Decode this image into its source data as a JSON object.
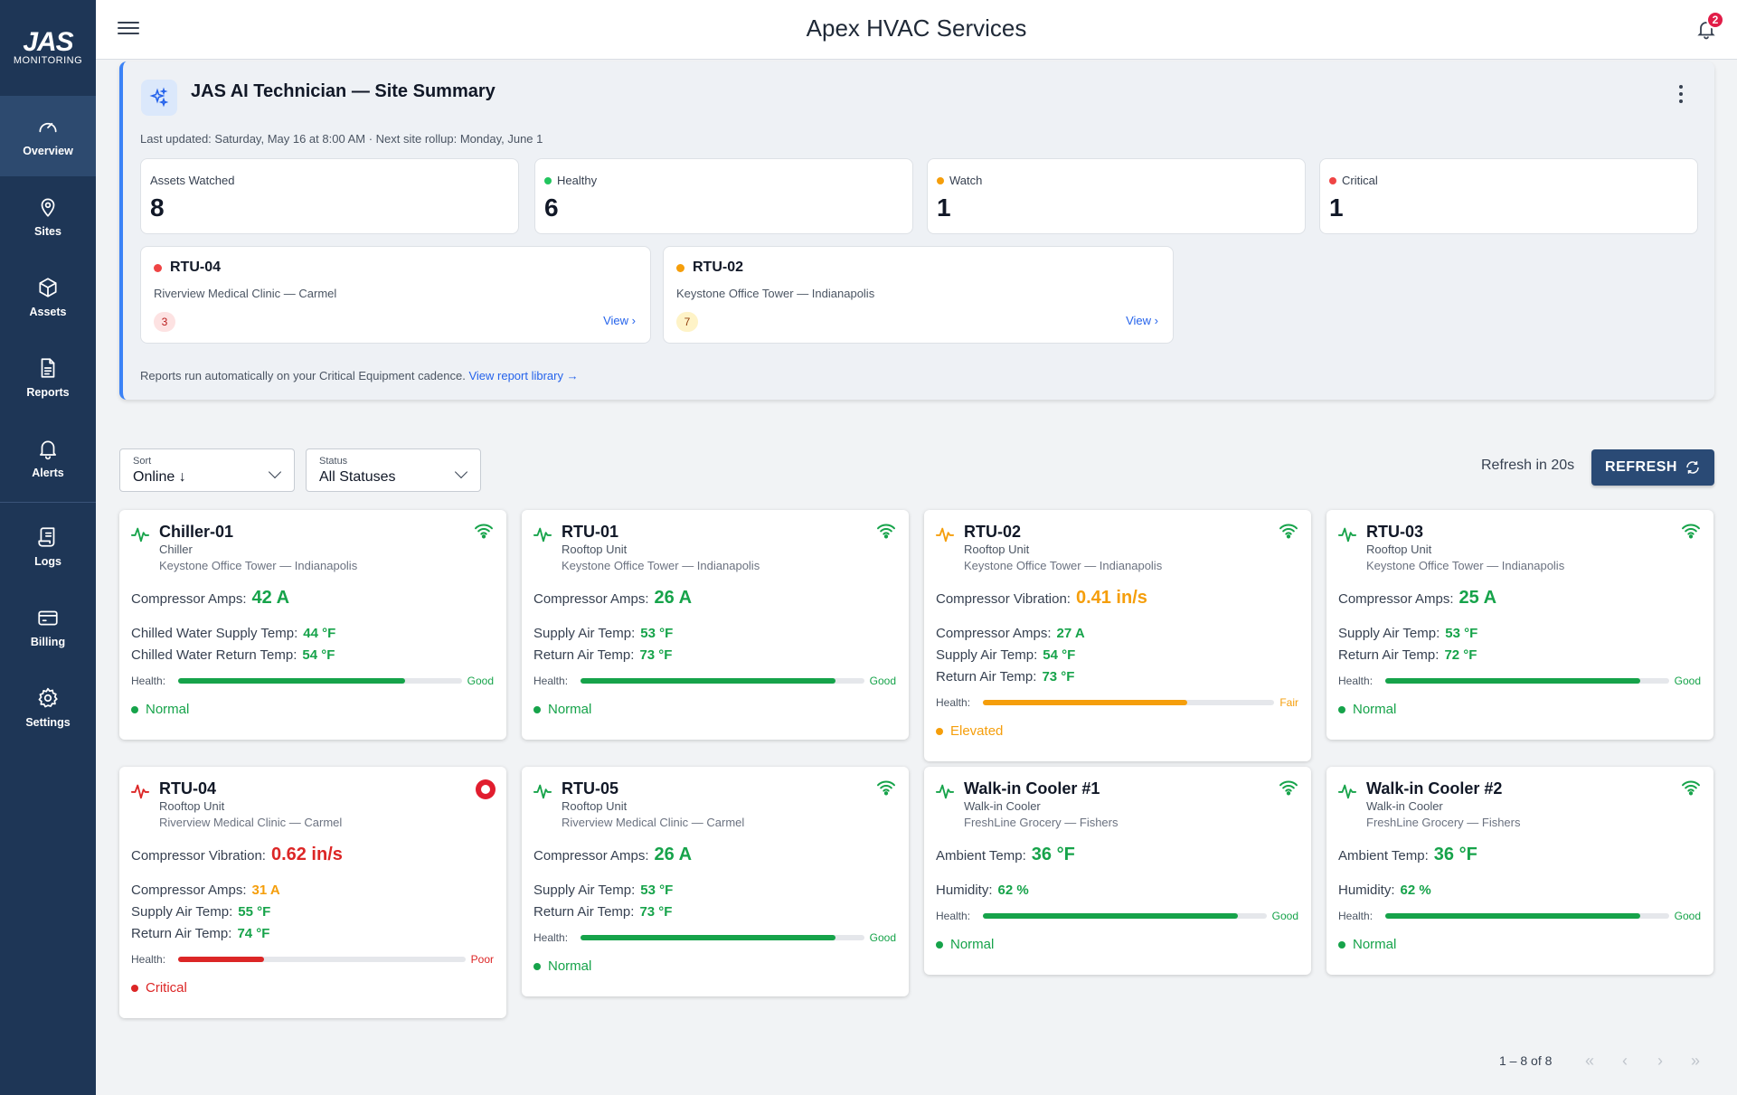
{
  "app": {
    "title": "Apex HVAC Services",
    "notifications": "2"
  },
  "logo": {
    "main": "JAS",
    "sub": "MONITORING"
  },
  "nav": [
    {
      "label": "Overview",
      "icon": "gauge-icon"
    },
    {
      "label": "Sites",
      "icon": "map-pin-icon"
    },
    {
      "label": "Assets",
      "icon": "cube-icon"
    },
    {
      "label": "Reports",
      "icon": "document-icon"
    },
    {
      "label": "Alerts",
      "icon": "bell-icon"
    },
    {
      "label": "Logs",
      "icon": "scroll-icon"
    },
    {
      "label": "Billing",
      "icon": "credit-card-icon"
    },
    {
      "label": "Settings",
      "icon": "gear-icon"
    }
  ],
  "summary": {
    "title": "JAS AI Technician — Site Summary",
    "last_updated": "Last updated: Saturday, May 16 at 8:00 AM · Next site rollup: Monday, June 1",
    "stats": [
      {
        "label": "Assets Watched",
        "value": "8",
        "color": ""
      },
      {
        "label": "Healthy",
        "value": "6",
        "color": "#22c55e"
      },
      {
        "label": "Watch",
        "value": "1",
        "color": "#f59e0b"
      },
      {
        "label": "Critical",
        "value": "1",
        "color": "#ef4444"
      }
    ],
    "alerts": [
      {
        "name": "RTU-04",
        "site": "Riverview Medical Clinic — Carmel",
        "count": "3",
        "view": "View ›",
        "color": "#ef4444",
        "badge_bg": "#fde2e2",
        "badge_fg": "#b91c1c"
      },
      {
        "name": "RTU-02",
        "site": "Keystone Office Tower — Indianapolis",
        "count": "7",
        "view": "View ›",
        "color": "#f59e0b",
        "badge_bg": "#fef3c7",
        "badge_fg": "#92400e"
      }
    ],
    "footer_text": "Reports run automatically on your Critical Equipment cadence.",
    "footer_link": "View report library →"
  },
  "filters": {
    "sort": {
      "label": "Sort",
      "value": "Online ↓"
    },
    "status": {
      "label": "Status",
      "value": "All Statuses"
    },
    "refresh_text": "Refresh in 20s",
    "refresh_button": "REFRESH"
  },
  "health_label": "Health:",
  "assets": [
    {
      "name": "Chiller-01",
      "type": "Chiller",
      "site": "Keystone Office Tower — Indianapolis",
      "primary_label": "Compressor Amps:",
      "primary_value": "42 A",
      "primary_color": "green",
      "metrics": [
        {
          "label": "Chilled Water Supply Temp:",
          "value": "44 °F",
          "color": "green"
        },
        {
          "label": "Chilled Water Return Temp:",
          "value": "54 °F",
          "color": "green"
        }
      ],
      "health_word": "Good",
      "health_level": 0.8,
      "health_color": "green",
      "status": "Normal",
      "status_color": "green",
      "pulse_color": "green",
      "connection": "wifi"
    },
    {
      "name": "RTU-01",
      "type": "Rooftop Unit",
      "site": "Keystone Office Tower — Indianapolis",
      "primary_label": "Compressor Amps:",
      "primary_value": "26 A",
      "primary_color": "green",
      "metrics": [
        {
          "label": "Supply Air Temp:",
          "value": "53 °F",
          "color": "green"
        },
        {
          "label": "Return Air Temp:",
          "value": "73 °F",
          "color": "green"
        }
      ],
      "health_word": "Good",
      "health_level": 0.9,
      "health_color": "green",
      "status": "Normal",
      "status_color": "green",
      "pulse_color": "green",
      "connection": "wifi"
    },
    {
      "name": "RTU-02",
      "type": "Rooftop Unit",
      "site": "Keystone Office Tower — Indianapolis",
      "primary_label": "Compressor Vibration:",
      "primary_value": "0.41 in/s",
      "primary_color": "orange",
      "metrics": [
        {
          "label": "Compressor Amps:",
          "value": "27 A",
          "color": "green"
        },
        {
          "label": "Supply Air Temp:",
          "value": "54 °F",
          "color": "green"
        },
        {
          "label": "Return Air Temp:",
          "value": "73 °F",
          "color": "green"
        }
      ],
      "health_word": "Fair",
      "health_level": 0.7,
      "health_color": "orange",
      "status": "Elevated",
      "status_color": "orange",
      "pulse_color": "orange",
      "connection": "wifi"
    },
    {
      "name": "RTU-03",
      "type": "Rooftop Unit",
      "site": "Keystone Office Tower — Indianapolis",
      "primary_label": "Compressor Amps:",
      "primary_value": "25 A",
      "primary_color": "green",
      "metrics": [
        {
          "label": "Supply Air Temp:",
          "value": "53 °F",
          "color": "green"
        },
        {
          "label": "Return Air Temp:",
          "value": "72 °F",
          "color": "green"
        }
      ],
      "health_word": "Good",
      "health_level": 0.9,
      "health_color": "green",
      "status": "Normal",
      "status_color": "green",
      "pulse_color": "green",
      "connection": "wifi"
    },
    {
      "name": "RTU-04",
      "type": "Rooftop Unit",
      "site": "Riverview Medical Clinic — Carmel",
      "primary_label": "Compressor Vibration:",
      "primary_value": "0.62 in/s",
      "primary_color": "red",
      "metrics": [
        {
          "label": "Compressor Amps:",
          "value": "31 A",
          "color": "orange"
        },
        {
          "label": "Supply Air Temp:",
          "value": "55 °F",
          "color": "green"
        },
        {
          "label": "Return Air Temp:",
          "value": "74 °F",
          "color": "green"
        }
      ],
      "health_word": "Poor",
      "health_level": 0.3,
      "health_color": "red",
      "status": "Critical",
      "status_color": "red",
      "pulse_color": "red",
      "connection": "critical"
    },
    {
      "name": "RTU-05",
      "type": "Rooftop Unit",
      "site": "Riverview Medical Clinic — Carmel",
      "primary_label": "Compressor Amps:",
      "primary_value": "26 A",
      "primary_color": "green",
      "metrics": [
        {
          "label": "Supply Air Temp:",
          "value": "53 °F",
          "color": "green"
        },
        {
          "label": "Return Air Temp:",
          "value": "73 °F",
          "color": "green"
        }
      ],
      "health_word": "Good",
      "health_level": 0.9,
      "health_color": "green",
      "status": "Normal",
      "status_color": "green",
      "pulse_color": "green",
      "connection": "wifi"
    },
    {
      "name": "Walk-in Cooler #1",
      "type": "Walk-in Cooler",
      "site": "FreshLine Grocery — Fishers",
      "primary_label": "Ambient Temp:",
      "primary_value": "36 °F",
      "primary_color": "green",
      "metrics": [
        {
          "label": "Humidity:",
          "value": "62 %",
          "color": "green"
        }
      ],
      "health_word": "Good",
      "health_level": 0.9,
      "health_color": "green",
      "status": "Normal",
      "status_color": "green",
      "pulse_color": "green",
      "connection": "wifi"
    },
    {
      "name": "Walk-in Cooler #2",
      "type": "Walk-in Cooler",
      "site": "FreshLine Grocery — Fishers",
      "primary_label": "Ambient Temp:",
      "primary_value": "36 °F",
      "primary_color": "green",
      "metrics": [
        {
          "label": "Humidity:",
          "value": "62 %",
          "color": "green"
        }
      ],
      "health_word": "Good",
      "health_level": 0.9,
      "health_color": "green",
      "status": "Normal",
      "status_color": "green",
      "pulse_color": "green",
      "connection": "wifi"
    }
  ],
  "pagination": {
    "range": "1 – 8 of 8",
    "first": "«",
    "prev": "‹",
    "next": "›",
    "last": "»"
  },
  "colors": {
    "green": "#16a34a",
    "orange": "#f59e0b",
    "red": "#dc2626",
    "sidebar": "#1e3656",
    "accent": "#2563eb"
  }
}
